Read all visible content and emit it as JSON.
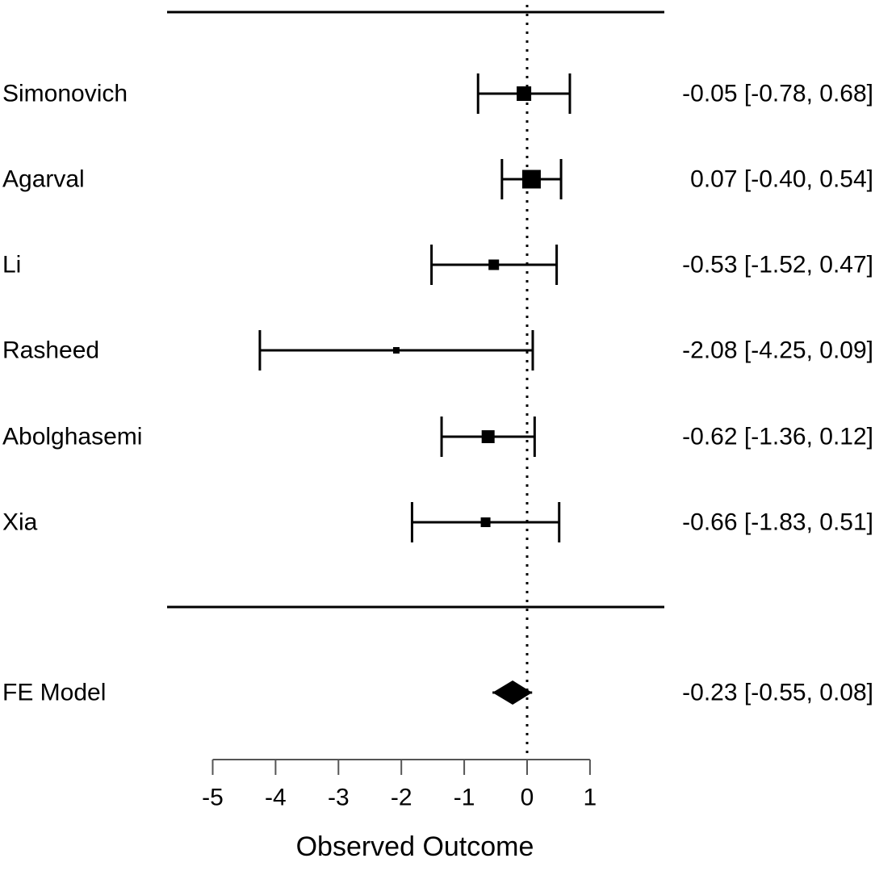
{
  "chart_data": {
    "type": "forest",
    "title": "",
    "xlabel": "Observed Outcome",
    "xlim": [
      -5.8,
      1.6
    ],
    "x_ticks": [
      -5,
      -4,
      -3,
      -2,
      -1,
      0,
      1
    ],
    "reference_line_x": 0,
    "grid": false,
    "legend": "none",
    "studies": [
      {
        "label": "Simonovich",
        "estimate": -0.05,
        "ci_lower": -0.78,
        "ci_upper": 0.68,
        "annotation": "-0.05 [-0.78, 0.68]",
        "marker_size": 18
      },
      {
        "label": "Agarval",
        "estimate": 0.07,
        "ci_lower": -0.4,
        "ci_upper": 0.54,
        "annotation": "0.07 [-0.40, 0.54]",
        "marker_size": 23
      },
      {
        "label": "Li",
        "estimate": -0.53,
        "ci_lower": -1.52,
        "ci_upper": 0.47,
        "annotation": "-0.53 [-1.52, 0.47]",
        "marker_size": 13
      },
      {
        "label": "Rasheed",
        "estimate": -2.08,
        "ci_lower": -4.25,
        "ci_upper": 0.09,
        "annotation": "-2.08 [-4.25, 0.09]",
        "marker_size": 8
      },
      {
        "label": "Abolghasemi",
        "estimate": -0.62,
        "ci_lower": -1.36,
        "ci_upper": 0.12,
        "annotation": "-0.62 [-1.36, 0.12]",
        "marker_size": 16
      },
      {
        "label": "Xia",
        "estimate": -0.66,
        "ci_lower": -1.83,
        "ci_upper": 0.51,
        "annotation": "-0.66 [-1.83, 0.51]",
        "marker_size": 12
      }
    ],
    "summary": {
      "label": "FE Model",
      "estimate": -0.23,
      "ci_lower": -0.55,
      "ci_upper": 0.08,
      "annotation": "-0.23 [-0.55, 0.08]"
    }
  },
  "colors": {
    "foreground": "#000000",
    "background": "#ffffff",
    "axis": "#555555"
  }
}
